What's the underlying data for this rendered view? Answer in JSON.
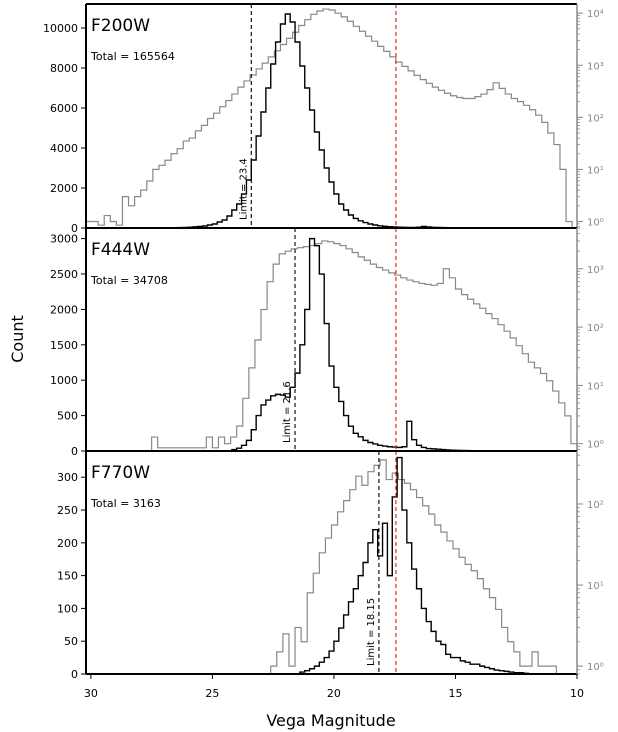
{
  "figure": {
    "xlabel": "Vega Magnitude",
    "ylabel": "Count"
  },
  "chart_data": [
    {
      "type": "histogram",
      "filter": "F200W",
      "total_label": "Total = 165564",
      "limit_label": "Limit = 23.4",
      "limit": 23.4,
      "red_line": 17.45,
      "xlim": [
        30.2,
        10
      ],
      "x_reversed": true,
      "xticks": [
        30,
        25,
        20,
        15,
        10
      ],
      "ylim": [
        0,
        11200
      ],
      "yticks": [
        0,
        2000,
        4000,
        6000,
        8000,
        10000
      ],
      "log_ylim": [
        0.75,
        15000
      ],
      "log_yticks": [
        {
          "value": 1,
          "label": "10⁰"
        },
        {
          "value": 10,
          "label": "10¹"
        },
        {
          "value": 100,
          "label": "10²"
        },
        {
          "value": 1000,
          "label": "10³"
        },
        {
          "value": 10000,
          "label": "10⁴"
        }
      ],
      "linear_series": {
        "name": "",
        "bin_start": 27.0,
        "bin_width": 0.2,
        "values": [
          5,
          10,
          15,
          20,
          30,
          40,
          60,
          80,
          100,
          150,
          200,
          300,
          400,
          600,
          900,
          1200,
          1700,
          2400,
          3400,
          4600,
          5800,
          7000,
          8200,
          9300,
          10200,
          10700,
          10300,
          9300,
          8100,
          7000,
          5900,
          4800,
          3900,
          3000,
          2300,
          1700,
          1200,
          900,
          650,
          480,
          360,
          270,
          200,
          150,
          110,
          85,
          65,
          50,
          40,
          35,
          30,
          28,
          40,
          80,
          50,
          35,
          25,
          20,
          15,
          12,
          10,
          8,
          6,
          5,
          4,
          3,
          2,
          1
        ]
      },
      "log_series": {
        "name": "",
        "bin_start": 30.2,
        "bin_width": 0.25,
        "values": [
          1,
          1,
          0.85,
          1.3,
          1,
          0.85,
          3,
          2,
          3,
          4,
          6,
          10,
          12,
          15,
          20,
          25,
          35,
          40,
          55,
          70,
          95,
          120,
          160,
          210,
          280,
          380,
          500,
          650,
          850,
          1100,
          1450,
          1900,
          2500,
          3300,
          4300,
          5800,
          7500,
          9500,
          11000,
          12000,
          11500,
          10000,
          8500,
          7000,
          5600,
          4500,
          3600,
          2900,
          2300,
          1850,
          1450,
          1150,
          950,
          780,
          640,
          530,
          450,
          380,
          330,
          290,
          260,
          240,
          230,
          230,
          250,
          280,
          340,
          460,
          360,
          280,
          230,
          200,
          170,
          140,
          110,
          80,
          50,
          30,
          10,
          1
        ]
      }
    },
    {
      "type": "histogram",
      "filter": "F444W",
      "total_label": "Total = 34708",
      "limit_label": "Limit = 21.6",
      "limit": 21.6,
      "red_line": 17.45,
      "xlim": [
        30.2,
        10
      ],
      "x_reversed": true,
      "xticks": [
        30,
        25,
        20,
        15,
        10
      ],
      "ylim": [
        0,
        3150
      ],
      "yticks": [
        0,
        500,
        1000,
        1500,
        2000,
        2500,
        3000
      ],
      "log_ylim": [
        0.75,
        5000
      ],
      "log_yticks": [
        {
          "value": 1,
          "label": "10⁰"
        },
        {
          "value": 10,
          "label": "10¹"
        },
        {
          "value": 100,
          "label": "10²"
        },
        {
          "value": 1000,
          "label": "10³"
        }
      ],
      "linear_series": {
        "name": "",
        "bin_start": 24.2,
        "bin_width": 0.2,
        "values": [
          20,
          40,
          80,
          150,
          300,
          500,
          650,
          720,
          780,
          800,
          790,
          760,
          900,
          1100,
          1500,
          2000,
          3000,
          2900,
          2500,
          1800,
          1200,
          900,
          700,
          500,
          350,
          250,
          200,
          150,
          120,
          100,
          80,
          70,
          60,
          55,
          50,
          60,
          420,
          160,
          80,
          50,
          35,
          30,
          25,
          20,
          15,
          12,
          10,
          8,
          6,
          5,
          4,
          3,
          2,
          1
        ]
      },
      "log_series": {
        "name": "",
        "bin_start": 27.5,
        "bin_width": 0.25,
        "values": [
          1.3,
          0.85,
          0.85,
          0.85,
          0.85,
          0.85,
          0.85,
          0.85,
          0.85,
          1.3,
          0.85,
          1.3,
          1,
          1.3,
          2,
          6,
          20,
          60,
          200,
          600,
          1200,
          1800,
          2000,
          2200,
          2300,
          2400,
          2500,
          2700,
          3000,
          2900,
          2700,
          2500,
          2200,
          1900,
          1600,
          1400,
          1200,
          1050,
          950,
          850,
          780,
          700,
          640,
          600,
          560,
          540,
          520,
          560,
          1000,
          700,
          450,
          360,
          300,
          250,
          210,
          170,
          140,
          110,
          85,
          65,
          48,
          35,
          25,
          20,
          16,
          12,
          8,
          5,
          3,
          1
        ]
      }
    },
    {
      "type": "histogram",
      "filter": "F770W",
      "total_label": "Total = 3163",
      "limit_label": "Limit = 18.15",
      "limit": 18.15,
      "red_line": 17.45,
      "xlim": [
        30.2,
        10
      ],
      "x_reversed": true,
      "xticks": [
        30,
        25,
        20,
        15,
        10
      ],
      "ylim": [
        0,
        340
      ],
      "yticks": [
        0,
        50,
        100,
        150,
        200,
        250,
        300
      ],
      "log_ylim": [
        0.8,
        450
      ],
      "log_yticks": [
        {
          "value": 1,
          "label": "10⁰"
        },
        {
          "value": 10,
          "label": "10¹"
        },
        {
          "value": 100,
          "label": "10²"
        }
      ],
      "linear_series": {
        "name": "",
        "bin_start": 21.4,
        "bin_width": 0.2,
        "values": [
          3,
          5,
          8,
          12,
          18,
          25,
          35,
          50,
          70,
          90,
          110,
          130,
          150,
          170,
          200,
          220,
          180,
          230,
          150,
          270,
          330,
          250,
          200,
          160,
          130,
          100,
          80,
          65,
          50,
          45,
          30,
          25,
          25,
          20,
          18,
          15,
          15,
          12,
          10,
          8,
          6,
          5,
          4,
          3,
          2,
          2,
          1
        ]
      },
      "log_series": {
        "name": "",
        "bin_start": 22.6,
        "bin_width": 0.25,
        "values": [
          1,
          1.5,
          2.5,
          1,
          3,
          2,
          8,
          14,
          25,
          38,
          55,
          80,
          110,
          150,
          220,
          170,
          250,
          300,
          350,
          200,
          240,
          200,
          180,
          150,
          120,
          95,
          75,
          55,
          45,
          35,
          28,
          22,
          18,
          15,
          12,
          9,
          7,
          5,
          3,
          2,
          1.5,
          1,
          1,
          1.5,
          1,
          1,
          1
        ]
      }
    }
  ]
}
